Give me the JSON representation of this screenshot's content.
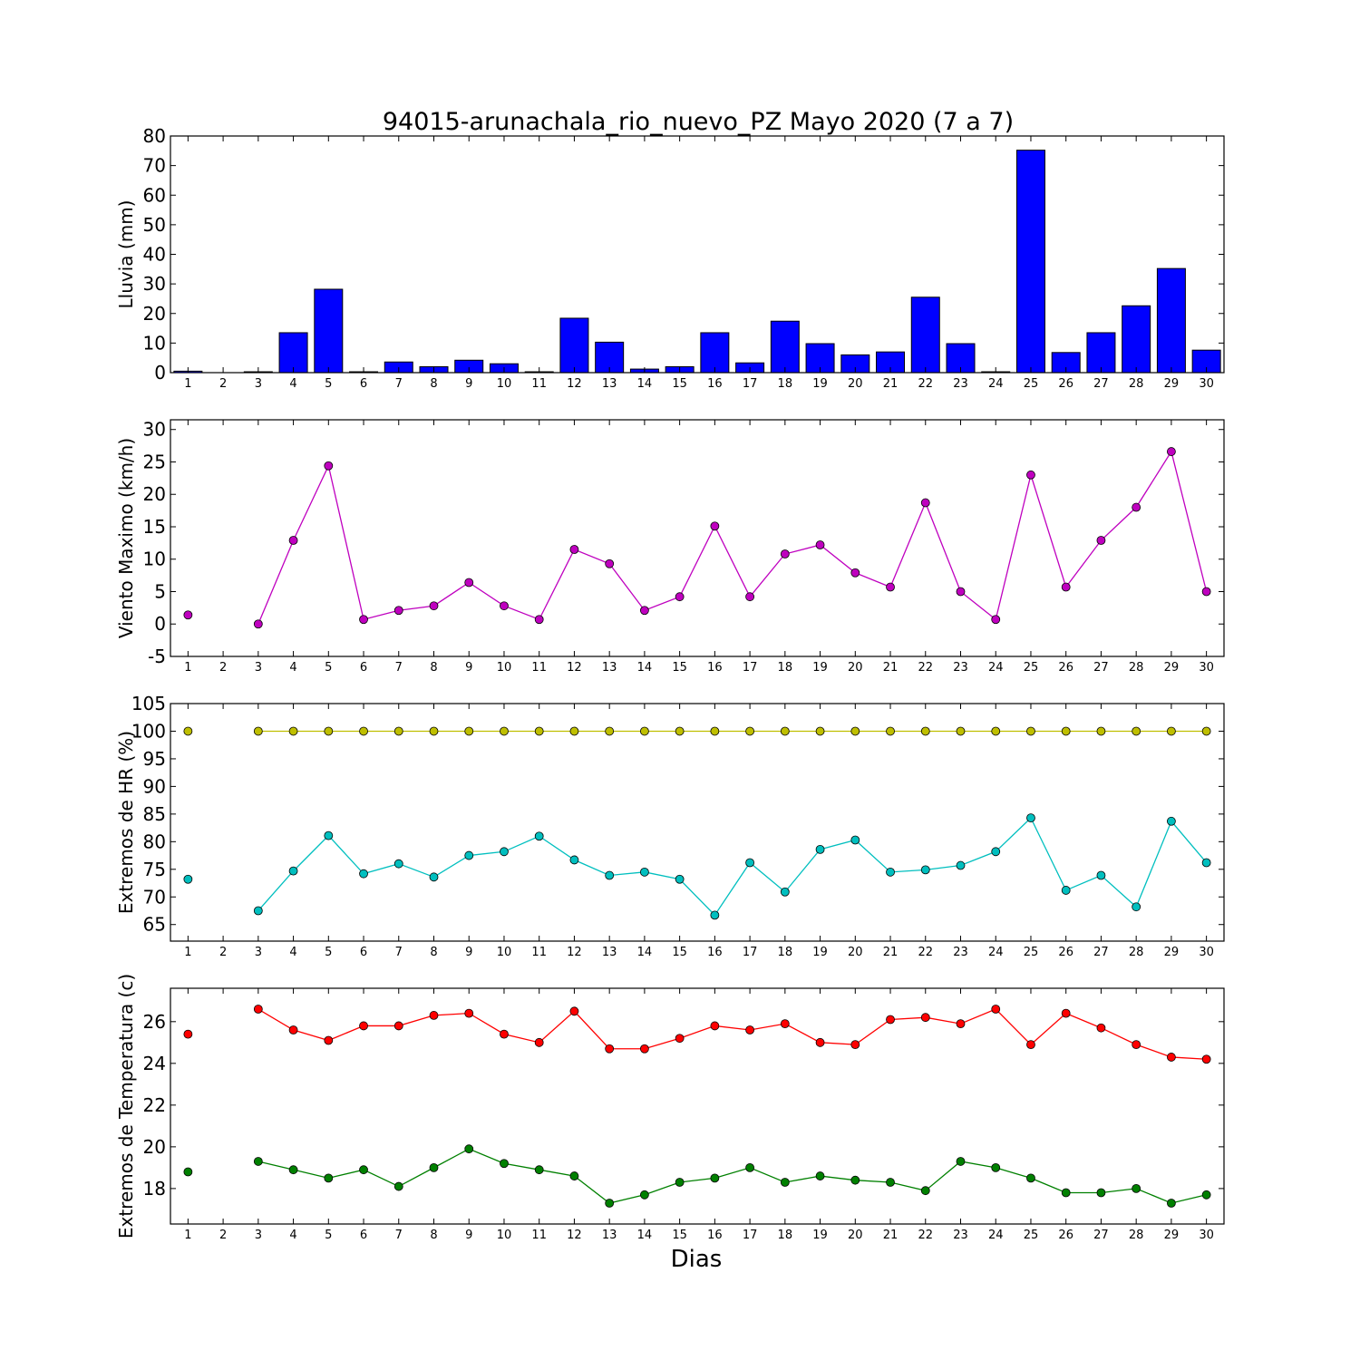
{
  "figure": {
    "title": "94015-arunachala_rio_nuevo_PZ Mayo 2020  (7 a 7)",
    "xlabel": "Dias"
  },
  "chart_data": [
    {
      "type": "bar",
      "ylabel": "Lluvia (mm)",
      "ylim": [
        0,
        80
      ],
      "yticks": [
        0,
        10,
        20,
        30,
        40,
        50,
        60,
        70,
        80
      ],
      "categories": [
        1,
        2,
        3,
        4,
        5,
        6,
        7,
        8,
        9,
        10,
        11,
        12,
        13,
        14,
        15,
        16,
        17,
        18,
        19,
        20,
        21,
        22,
        23,
        24,
        25,
        26,
        27,
        28,
        29,
        30
      ],
      "values": [
        0.5,
        0,
        0.3,
        13.5,
        28.2,
        0.3,
        3.6,
        2.0,
        4.2,
        3.0,
        0.3,
        18.4,
        10.3,
        1.2,
        2.0,
        13.5,
        3.3,
        17.4,
        9.8,
        6.0,
        7.0,
        25.5,
        9.8,
        0.3,
        75.2,
        6.8,
        13.5,
        22.6,
        35.2,
        7.6
      ],
      "color": "#0000ff",
      "grid": false
    },
    {
      "type": "line",
      "ylabel": "Viento Maximo (km/h)",
      "ylim": [
        -5,
        31.5
      ],
      "yticks": [
        -5,
        0,
        5,
        10,
        15,
        20,
        25,
        30
      ],
      "x": [
        1,
        2,
        3,
        4,
        5,
        6,
        7,
        8,
        9,
        10,
        11,
        12,
        13,
        14,
        15,
        16,
        17,
        18,
        19,
        20,
        21,
        22,
        23,
        24,
        25,
        26,
        27,
        28,
        29,
        30
      ],
      "series": [
        {
          "color": "#bf00bf",
          "values": [
            1.4,
            null,
            0.0,
            12.9,
            24.4,
            0.7,
            2.1,
            2.8,
            6.4,
            2.8,
            0.7,
            11.5,
            9.3,
            2.1,
            4.2,
            15.1,
            4.2,
            10.8,
            12.2,
            7.9,
            5.7,
            18.7,
            5.0,
            0.7,
            23.0,
            5.7,
            12.9,
            18.0,
            26.6,
            5.0
          ]
        }
      ],
      "grid": false
    },
    {
      "type": "line",
      "ylabel": "Extremos de HR (%)",
      "ylim": [
        62,
        105
      ],
      "yticks": [
        65,
        70,
        75,
        80,
        85,
        90,
        95,
        100,
        105
      ],
      "x": [
        1,
        2,
        3,
        4,
        5,
        6,
        7,
        8,
        9,
        10,
        11,
        12,
        13,
        14,
        15,
        16,
        17,
        18,
        19,
        20,
        21,
        22,
        23,
        24,
        25,
        26,
        27,
        28,
        29,
        30
      ],
      "series": [
        {
          "color": "#bfbf00",
          "values": [
            100,
            null,
            100,
            100,
            100,
            100,
            100,
            100,
            100,
            100,
            100,
            100,
            100,
            100,
            100,
            100,
            100,
            100,
            100,
            100,
            100,
            100,
            100,
            100,
            100,
            100,
            100,
            100,
            100,
            100
          ]
        },
        {
          "color": "#00bfbf",
          "values": [
            73.2,
            null,
            67.5,
            74.7,
            81.1,
            74.2,
            76.0,
            73.6,
            77.5,
            78.2,
            81.0,
            76.7,
            73.9,
            74.5,
            73.2,
            66.7,
            76.2,
            70.9,
            78.6,
            80.3,
            74.5,
            74.9,
            75.7,
            78.2,
            84.3,
            71.2,
            73.9,
            68.2,
            83.7,
            76.2
          ]
        }
      ],
      "grid": false
    },
    {
      "type": "line",
      "ylabel": "Extremos de Temperatura (c)",
      "ylim": [
        16.3,
        27.6
      ],
      "yticks": [
        18,
        20,
        22,
        24,
        26
      ],
      "x": [
        1,
        2,
        3,
        4,
        5,
        6,
        7,
        8,
        9,
        10,
        11,
        12,
        13,
        14,
        15,
        16,
        17,
        18,
        19,
        20,
        21,
        22,
        23,
        24,
        25,
        26,
        27,
        28,
        29,
        30
      ],
      "series": [
        {
          "color": "#ff0000",
          "values": [
            25.4,
            null,
            26.6,
            25.6,
            25.1,
            25.8,
            25.8,
            26.3,
            26.4,
            25.4,
            25.0,
            26.5,
            24.7,
            24.7,
            25.2,
            25.8,
            25.6,
            25.9,
            25.0,
            24.9,
            26.1,
            26.2,
            25.9,
            26.6,
            24.9,
            26.4,
            25.7,
            24.9,
            24.3,
            24.2
          ]
        },
        {
          "color": "#008000",
          "values": [
            18.8,
            null,
            19.3,
            18.9,
            18.5,
            18.9,
            18.1,
            19.0,
            19.9,
            19.2,
            18.9,
            18.6,
            17.3,
            17.7,
            18.3,
            18.5,
            19.0,
            18.3,
            18.6,
            18.4,
            18.3,
            17.9,
            19.3,
            19.0,
            18.5,
            17.8,
            17.8,
            18.0,
            17.3,
            17.7
          ]
        }
      ],
      "grid": false
    }
  ]
}
